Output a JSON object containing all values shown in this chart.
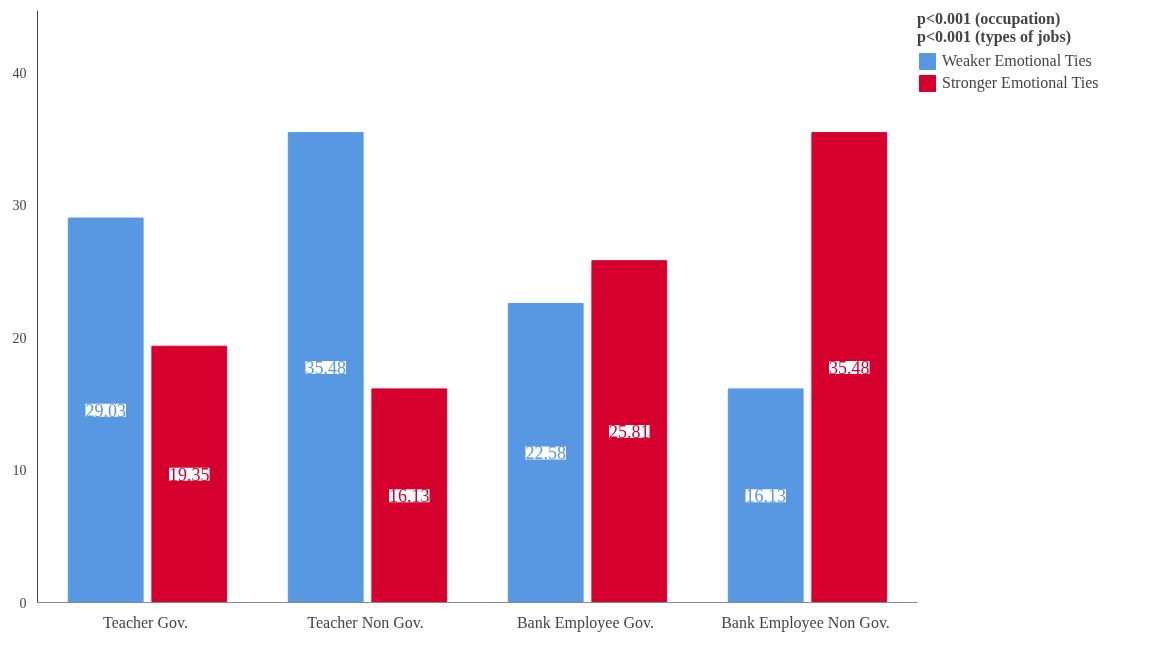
{
  "chart_data": {
    "type": "bar",
    "categories": [
      "Teacher  Gov.",
      "Teacher  Non Gov.",
      "Bank Employee  Gov.",
      "Bank Employee  Non Gov."
    ],
    "series": [
      {
        "name": "Weaker Emotional Ties",
        "color": "#5898e2",
        "values": [
          29.03,
          35.48,
          22.58,
          16.13
        ]
      },
      {
        "name": "Stronger Emotional Ties",
        "color": "#d6002f",
        "values": [
          19.35,
          16.13,
          25.81,
          35.48
        ]
      }
    ],
    "legend_title": "p<0.001 (occupation)\np<0.001 (types of jobs)",
    "legend": "top right",
    "ylim": [
      0,
      44.7
    ],
    "yticks": [
      0,
      10,
      20,
      30,
      40
    ],
    "grid": false,
    "data_labels": true
  }
}
